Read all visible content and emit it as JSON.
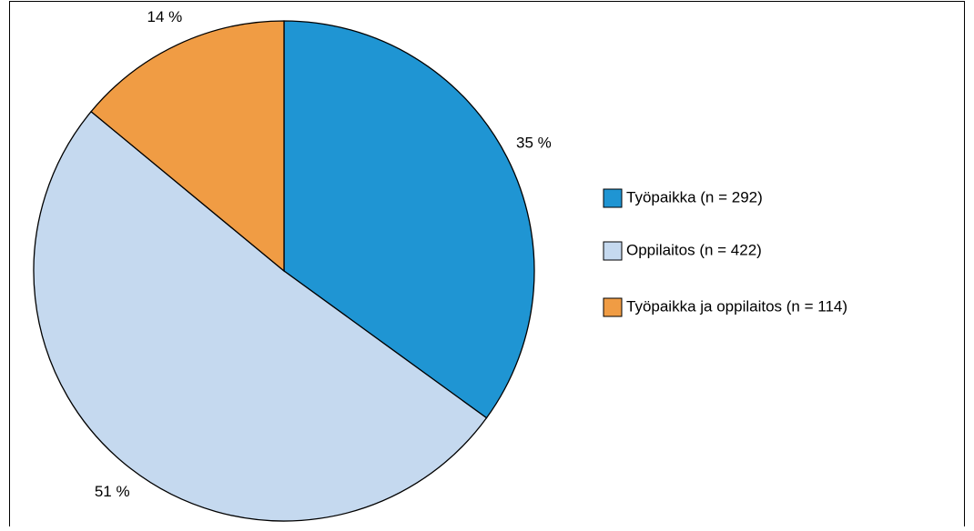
{
  "chart_data": {
    "type": "pie",
    "categories": [
      "Työpaikka (n = 292)",
      "Oppilaitos (n = 422)",
      "Työpaikka ja oppilaitos (n = 114)"
    ],
    "values": [
      35,
      51,
      14
    ],
    "value_labels": [
      "35 %",
      "51 %",
      "14 %"
    ],
    "colors": [
      "#1f95d3",
      "#c5d9ef",
      "#f09c44"
    ],
    "legend": "right"
  }
}
